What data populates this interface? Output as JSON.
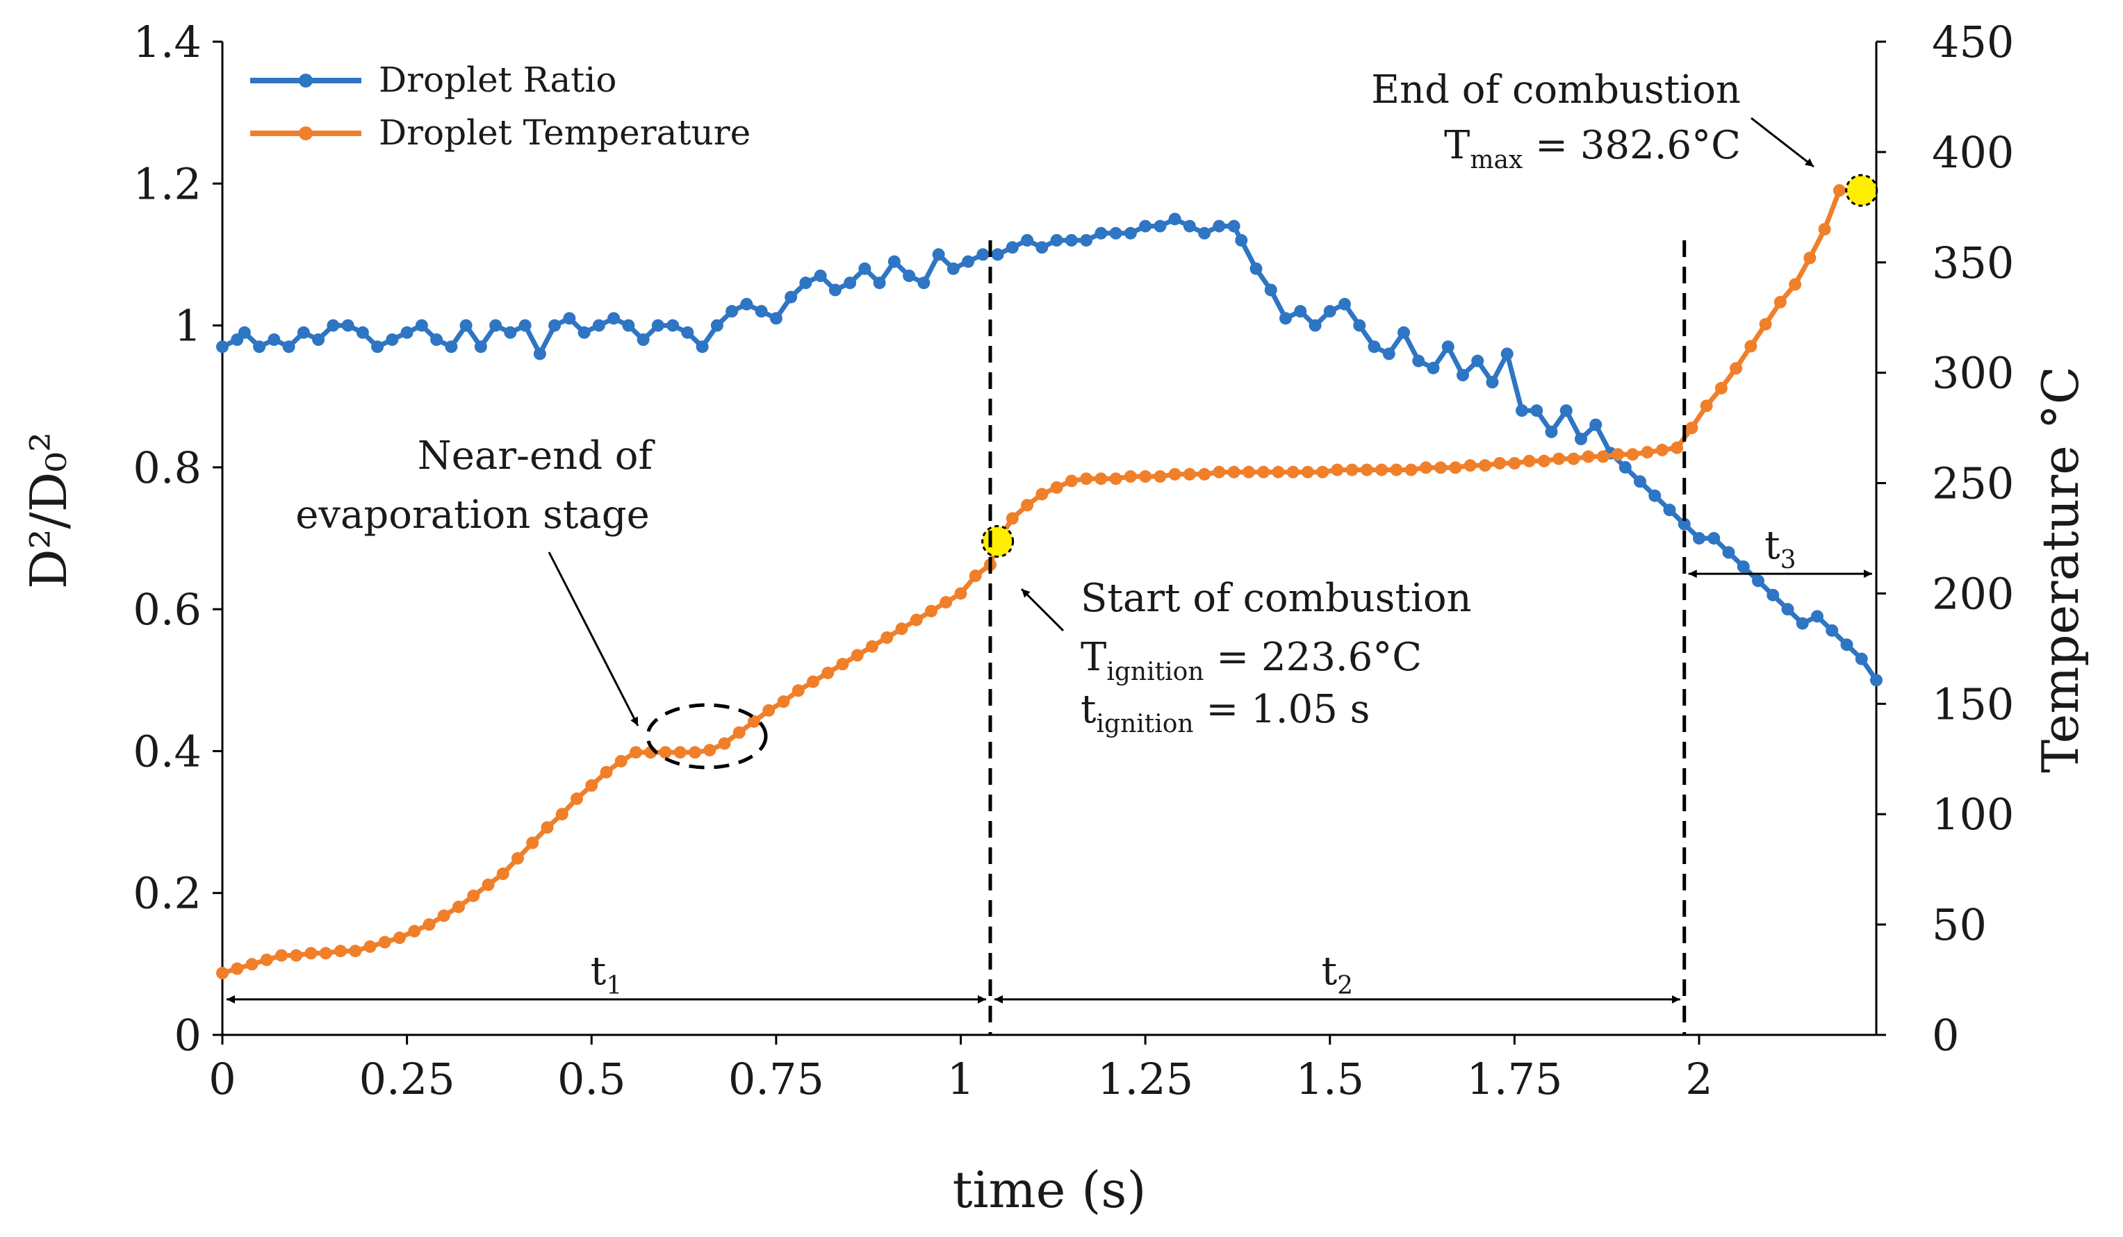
{
  "chart_data": {
    "type": "line",
    "xlabel": "time (s)",
    "ylabel": "D²/D₀²",
    "y2label": "Temperature °C",
    "xlim": [
      0,
      2.24
    ],
    "ylim": [
      0,
      1.4
    ],
    "y2lim": [
      0,
      450
    ],
    "x_ticks": [
      0,
      0.25,
      0.5,
      0.75,
      1,
      1.25,
      1.5,
      1.75,
      2
    ],
    "x_tick_labels": [
      "0",
      "0.25",
      "0.5",
      "0.75",
      "1",
      "1.25",
      "1.5",
      "1.75",
      "2"
    ],
    "y_ticks": [
      0,
      0.2,
      0.4,
      0.6,
      0.8,
      1,
      1.2,
      1.4
    ],
    "y_tick_labels": [
      "0",
      "0.2",
      "0.4",
      "0.6",
      "0.8",
      "1",
      "1.2",
      "1.4"
    ],
    "y2_ticks": [
      0,
      50,
      100,
      150,
      200,
      250,
      300,
      350,
      400,
      450
    ],
    "y2_tick_labels": [
      "0",
      "50",
      "100",
      "150",
      "200",
      "250",
      "300",
      "350",
      "400",
      "450"
    ],
    "legend_position": "top-left",
    "series": [
      {
        "name": "Droplet Ratio",
        "axis": "left",
        "color": "#2e75c3",
        "points": [
          [
            0.0,
            0.97
          ],
          [
            0.02,
            0.98
          ],
          [
            0.03,
            0.99
          ],
          [
            0.05,
            0.97
          ],
          [
            0.07,
            0.98
          ],
          [
            0.09,
            0.97
          ],
          [
            0.11,
            0.99
          ],
          [
            0.13,
            0.98
          ],
          [
            0.15,
            1.0
          ],
          [
            0.17,
            1.0
          ],
          [
            0.19,
            0.99
          ],
          [
            0.21,
            0.97
          ],
          [
            0.23,
            0.98
          ],
          [
            0.25,
            0.99
          ],
          [
            0.27,
            1.0
          ],
          [
            0.29,
            0.98
          ],
          [
            0.31,
            0.97
          ],
          [
            0.33,
            1.0
          ],
          [
            0.35,
            0.97
          ],
          [
            0.37,
            1.0
          ],
          [
            0.39,
            0.99
          ],
          [
            0.41,
            1.0
          ],
          [
            0.43,
            0.96
          ],
          [
            0.45,
            1.0
          ],
          [
            0.47,
            1.01
          ],
          [
            0.49,
            0.99
          ],
          [
            0.51,
            1.0
          ],
          [
            0.53,
            1.01
          ],
          [
            0.55,
            1.0
          ],
          [
            0.57,
            0.98
          ],
          [
            0.59,
            1.0
          ],
          [
            0.61,
            1.0
          ],
          [
            0.63,
            0.99
          ],
          [
            0.65,
            0.97
          ],
          [
            0.67,
            1.0
          ],
          [
            0.69,
            1.02
          ],
          [
            0.71,
            1.03
          ],
          [
            0.73,
            1.02
          ],
          [
            0.75,
            1.01
          ],
          [
            0.77,
            1.04
          ],
          [
            0.79,
            1.06
          ],
          [
            0.81,
            1.07
          ],
          [
            0.83,
            1.05
          ],
          [
            0.85,
            1.06
          ],
          [
            0.87,
            1.08
          ],
          [
            0.89,
            1.06
          ],
          [
            0.91,
            1.09
          ],
          [
            0.93,
            1.07
          ],
          [
            0.95,
            1.06
          ],
          [
            0.97,
            1.1
          ],
          [
            0.99,
            1.08
          ],
          [
            1.01,
            1.09
          ],
          [
            1.03,
            1.1
          ],
          [
            1.05,
            1.1
          ],
          [
            1.07,
            1.11
          ],
          [
            1.09,
            1.12
          ],
          [
            1.11,
            1.11
          ],
          [
            1.13,
            1.12
          ],
          [
            1.15,
            1.12
          ],
          [
            1.17,
            1.12
          ],
          [
            1.19,
            1.13
          ],
          [
            1.21,
            1.13
          ],
          [
            1.23,
            1.13
          ],
          [
            1.25,
            1.14
          ],
          [
            1.27,
            1.14
          ],
          [
            1.29,
            1.15
          ],
          [
            1.31,
            1.14
          ],
          [
            1.33,
            1.13
          ],
          [
            1.35,
            1.14
          ],
          [
            1.37,
            1.14
          ],
          [
            1.38,
            1.12
          ],
          [
            1.4,
            1.08
          ],
          [
            1.42,
            1.05
          ],
          [
            1.44,
            1.01
          ],
          [
            1.46,
            1.02
          ],
          [
            1.48,
            1.0
          ],
          [
            1.5,
            1.02
          ],
          [
            1.52,
            1.03
          ],
          [
            1.54,
            1.0
          ],
          [
            1.56,
            0.97
          ],
          [
            1.58,
            0.96
          ],
          [
            1.6,
            0.99
          ],
          [
            1.62,
            0.95
          ],
          [
            1.64,
            0.94
          ],
          [
            1.66,
            0.97
          ],
          [
            1.68,
            0.93
          ],
          [
            1.7,
            0.95
          ],
          [
            1.72,
            0.92
          ],
          [
            1.74,
            0.96
          ],
          [
            1.76,
            0.88
          ],
          [
            1.78,
            0.88
          ],
          [
            1.8,
            0.85
          ],
          [
            1.82,
            0.88
          ],
          [
            1.84,
            0.84
          ],
          [
            1.86,
            0.86
          ],
          [
            1.88,
            0.82
          ],
          [
            1.9,
            0.8
          ],
          [
            1.92,
            0.78
          ],
          [
            1.94,
            0.76
          ],
          [
            1.96,
            0.74
          ],
          [
            1.98,
            0.72
          ],
          [
            2.0,
            0.7
          ],
          [
            2.02,
            0.7
          ],
          [
            2.04,
            0.68
          ],
          [
            2.06,
            0.66
          ],
          [
            2.08,
            0.64
          ],
          [
            2.1,
            0.62
          ],
          [
            2.12,
            0.6
          ],
          [
            2.14,
            0.58
          ],
          [
            2.16,
            0.59
          ],
          [
            2.18,
            0.57
          ],
          [
            2.2,
            0.55
          ],
          [
            2.22,
            0.53
          ],
          [
            2.24,
            0.5
          ]
        ]
      },
      {
        "name": "Droplet Temperature",
        "axis": "right",
        "color": "#f07f2a",
        "points": [
          [
            0.0,
            28
          ],
          [
            0.02,
            30
          ],
          [
            0.04,
            32
          ],
          [
            0.06,
            34
          ],
          [
            0.08,
            36
          ],
          [
            0.1,
            36
          ],
          [
            0.12,
            37
          ],
          [
            0.14,
            37
          ],
          [
            0.16,
            38
          ],
          [
            0.18,
            38
          ],
          [
            0.2,
            40
          ],
          [
            0.22,
            42
          ],
          [
            0.24,
            44
          ],
          [
            0.26,
            47
          ],
          [
            0.28,
            50
          ],
          [
            0.3,
            54
          ],
          [
            0.32,
            58
          ],
          [
            0.34,
            63
          ],
          [
            0.36,
            68
          ],
          [
            0.38,
            73
          ],
          [
            0.4,
            80
          ],
          [
            0.42,
            87
          ],
          [
            0.44,
            94
          ],
          [
            0.46,
            100
          ],
          [
            0.48,
            107
          ],
          [
            0.5,
            113
          ],
          [
            0.52,
            119
          ],
          [
            0.54,
            124
          ],
          [
            0.56,
            128
          ],
          [
            0.58,
            128
          ],
          [
            0.6,
            128
          ],
          [
            0.62,
            128
          ],
          [
            0.64,
            128
          ],
          [
            0.66,
            129
          ],
          [
            0.68,
            132
          ],
          [
            0.7,
            137
          ],
          [
            0.72,
            142
          ],
          [
            0.74,
            147
          ],
          [
            0.76,
            151
          ],
          [
            0.78,
            156
          ],
          [
            0.8,
            160
          ],
          [
            0.82,
            164
          ],
          [
            0.84,
            168
          ],
          [
            0.86,
            172
          ],
          [
            0.88,
            176
          ],
          [
            0.9,
            180
          ],
          [
            0.92,
            184
          ],
          [
            0.94,
            188
          ],
          [
            0.96,
            192
          ],
          [
            0.98,
            196
          ],
          [
            1.0,
            200
          ],
          [
            1.02,
            208
          ],
          [
            1.04,
            213
          ],
          [
            1.05,
            223.6
          ],
          [
            1.07,
            234
          ],
          [
            1.09,
            240
          ],
          [
            1.11,
            245
          ],
          [
            1.13,
            248
          ],
          [
            1.15,
            251
          ],
          [
            1.17,
            252
          ],
          [
            1.19,
            252
          ],
          [
            1.21,
            252
          ],
          [
            1.23,
            253
          ],
          [
            1.25,
            253
          ],
          [
            1.27,
            253
          ],
          [
            1.29,
            254
          ],
          [
            1.31,
            254
          ],
          [
            1.33,
            254
          ],
          [
            1.35,
            255
          ],
          [
            1.37,
            255
          ],
          [
            1.39,
            255
          ],
          [
            1.41,
            255
          ],
          [
            1.43,
            255
          ],
          [
            1.45,
            255
          ],
          [
            1.47,
            255
          ],
          [
            1.49,
            255
          ],
          [
            1.51,
            256
          ],
          [
            1.53,
            256
          ],
          [
            1.55,
            256
          ],
          [
            1.57,
            256
          ],
          [
            1.59,
            256
          ],
          [
            1.61,
            256
          ],
          [
            1.63,
            257
          ],
          [
            1.65,
            257
          ],
          [
            1.67,
            257
          ],
          [
            1.69,
            258
          ],
          [
            1.71,
            258
          ],
          [
            1.73,
            259
          ],
          [
            1.75,
            259
          ],
          [
            1.77,
            260
          ],
          [
            1.79,
            260
          ],
          [
            1.81,
            261
          ],
          [
            1.83,
            261
          ],
          [
            1.85,
            262
          ],
          [
            1.87,
            262
          ],
          [
            1.89,
            263
          ],
          [
            1.91,
            263
          ],
          [
            1.93,
            264
          ],
          [
            1.95,
            265
          ],
          [
            1.97,
            266
          ],
          [
            1.99,
            275
          ],
          [
            2.01,
            285
          ],
          [
            2.03,
            293
          ],
          [
            2.05,
            302
          ],
          [
            2.07,
            312
          ],
          [
            2.09,
            322
          ],
          [
            2.11,
            332
          ],
          [
            2.13,
            340
          ],
          [
            2.15,
            352
          ],
          [
            2.17,
            365
          ],
          [
            2.19,
            382.6
          ],
          [
            2.21,
            383
          ]
        ]
      }
    ],
    "highlight_points": [
      {
        "name": "ignition",
        "x": 1.05,
        "axis": "right",
        "y": 223.6,
        "color": "#ffee00"
      },
      {
        "name": "end",
        "x": 2.22,
        "axis": "right",
        "y": 382.6,
        "color": "#ffee00"
      }
    ],
    "vertical_lines": [
      1.04,
      1.98
    ],
    "intervals": [
      {
        "from": 0,
        "to": 1.04,
        "label": "t",
        "sub": "1",
        "level": 0.05
      },
      {
        "from": 1.04,
        "to": 1.98,
        "label": "t",
        "sub": "2",
        "level": 0.05
      },
      {
        "from": 1.98,
        "to": 2.24,
        "label": "t",
        "sub": "3",
        "level": 0.65
      }
    ],
    "annotations": {
      "near_end": {
        "line1": "Near-end of",
        "line2": "evaporation stage"
      },
      "start": {
        "title": "Start of combustion",
        "t_sym": "T",
        "t_sub": "ignition",
        "t_val": " = 223.6°C",
        "time_sym": "t",
        "time_sub": "ignition",
        "time_val": " = 1.05 s"
      },
      "end": {
        "title": "End of combustion",
        "t_sym": "T",
        "t_sub": "max",
        "t_val": " = 382.6°C"
      }
    }
  }
}
